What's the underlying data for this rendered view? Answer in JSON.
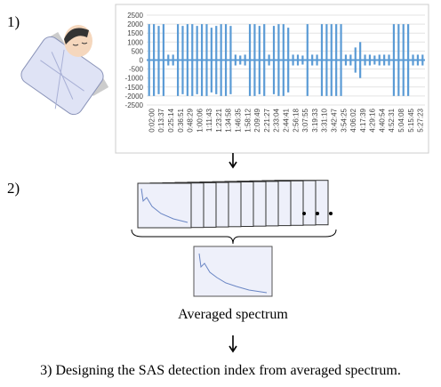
{
  "step1": "1)",
  "step2": "2)",
  "averaged_label": "Averaged spectrum",
  "step3": "3) Designing the SAS detection index from averaged spectrum.",
  "chart_data": {
    "type": "signal",
    "color": "#5b9bd5",
    "grid": true,
    "ylim": [
      -2500,
      2500
    ],
    "yticks": [
      2500,
      2000,
      1500,
      1000,
      500,
      0,
      -500,
      -1000,
      -1500,
      -2000,
      -2500
    ],
    "categories": [
      "0:02:00",
      "0:13:37",
      "0:25:14",
      "0:36:51",
      "0:48:29",
      "1:00:06",
      "1:11:43",
      "1:23:21",
      "1:34:58",
      "1:46:35",
      "1:58:12",
      "2:09:49",
      "2:21:27",
      "2:33:04",
      "2:44:41",
      "2:56:18",
      "3:07:55",
      "3:19:33",
      "3:31:10",
      "3:42:47",
      "3:54:25",
      "4:06:02",
      "4:17:39",
      "4:29:16",
      "4:40:54",
      "4:52:31",
      "5:04:08",
      "5:15:45",
      "5:27:23"
    ],
    "amplitude": [
      2000,
      2000,
      1900,
      2000,
      300,
      300,
      2000,
      1900,
      2000,
      2000,
      1900,
      2000,
      2000,
      1800,
      1900,
      2000,
      2000,
      1900,
      300,
      250,
      300,
      2000,
      2000,
      1900,
      2000,
      300,
      1900,
      2000,
      2000,
      1800,
      300,
      300,
      250,
      2000,
      300,
      300,
      2000,
      2000,
      2000,
      2000,
      2000,
      300,
      300,
      700,
      1000,
      300,
      300,
      250,
      300,
      300,
      300,
      2000,
      2000,
      2000,
      2000,
      300,
      300,
      300
    ]
  }
}
